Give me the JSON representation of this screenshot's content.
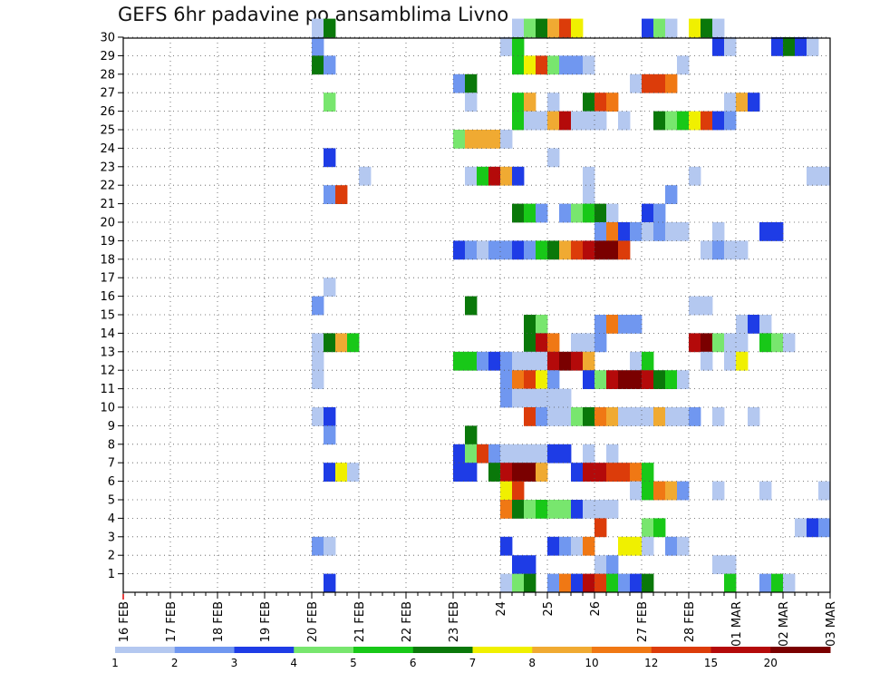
{
  "chart_data": {
    "type": "heatmap",
    "title": "GEFS 6hr padavine po ansamblima Livno",
    "xlabel": "",
    "ylabel": "",
    "x_tick_labels": [
      "16 FEB",
      "17 FEB",
      "18 FEB",
      "19 FEB",
      "20 FEB",
      "21 FEB",
      "22 FEB",
      "23 FEB",
      "24",
      "25",
      "26",
      "27 FEB",
      "28 FEB",
      "01 MAR",
      "02 MAR",
      "03 MAR"
    ],
    "y_tick_labels": [
      "1",
      "2",
      "3",
      "4",
      "5",
      "6",
      "7",
      "8",
      "9",
      "10",
      "11",
      "12",
      "13",
      "14",
      "15",
      "16",
      "17",
      "18",
      "19",
      "20",
      "21",
      "22",
      "23",
      "24",
      "25",
      "26",
      "27",
      "28",
      "29",
      "30"
    ],
    "x_step_days": 0.25,
    "grid": true,
    "colorbar": {
      "position": "bottom",
      "colors": [
        "#b4c8f0",
        "#7097f0",
        "#1e3ce6",
        "#78e66e",
        "#18c818",
        "#0a780a",
        "#f0f000",
        "#f0aa32",
        "#f07814",
        "#dc3c0a",
        "#b40a0a",
        "#7a0000"
      ],
      "labels": [
        "1",
        "2",
        "3",
        "4",
        "5",
        "6",
        "7",
        "8",
        "10",
        "12",
        "15",
        "20"
      ]
    },
    "cells": [
      [
        20.0,
        30,
        1
      ],
      [
        20.25,
        30,
        6
      ],
      [
        24.25,
        30,
        1
      ],
      [
        24.5,
        30,
        4
      ],
      [
        24.75,
        30,
        6
      ],
      [
        25.0,
        30,
        8
      ],
      [
        25.25,
        30,
        10
      ],
      [
        25.5,
        30,
        7
      ],
      [
        27.0,
        30,
        3
      ],
      [
        27.25,
        30,
        4
      ],
      [
        27.5,
        30,
        1
      ],
      [
        28.0,
        30,
        7
      ],
      [
        28.25,
        30,
        6
      ],
      [
        28.5,
        30,
        1
      ],
      [
        20.0,
        29,
        2
      ],
      [
        24.0,
        29,
        1
      ],
      [
        24.25,
        29,
        5
      ],
      [
        28.5,
        29,
        3
      ],
      [
        28.75,
        29,
        1
      ],
      [
        29.75,
        29,
        3
      ],
      [
        30.0,
        29,
        6
      ],
      [
        30.25,
        29,
        3
      ],
      [
        30.5,
        29,
        1
      ],
      [
        20.0,
        28,
        6
      ],
      [
        20.25,
        28,
        2
      ],
      [
        24.25,
        28,
        5
      ],
      [
        24.5,
        28,
        7
      ],
      [
        24.75,
        28,
        10
      ],
      [
        25.0,
        28,
        4
      ],
      [
        25.25,
        28,
        2
      ],
      [
        25.5,
        28,
        2
      ],
      [
        25.75,
        28,
        1
      ],
      [
        27.75,
        28,
        1
      ],
      [
        23.0,
        27,
        2
      ],
      [
        23.25,
        27,
        6
      ],
      [
        26.75,
        27,
        1
      ],
      [
        27.0,
        27,
        10
      ],
      [
        27.25,
        27,
        10
      ],
      [
        27.5,
        27,
        9
      ],
      [
        20.25,
        26,
        4
      ],
      [
        23.25,
        26,
        1
      ],
      [
        24.25,
        26,
        5
      ],
      [
        24.5,
        26,
        8
      ],
      [
        25.0,
        26,
        1
      ],
      [
        25.75,
        26,
        6
      ],
      [
        26.0,
        26,
        10
      ],
      [
        26.25,
        26,
        9
      ],
      [
        28.75,
        26,
        1
      ],
      [
        29.0,
        26,
        8
      ],
      [
        29.25,
        26,
        3
      ],
      [
        24.25,
        25,
        5
      ],
      [
        24.5,
        25,
        1
      ],
      [
        24.75,
        25,
        1
      ],
      [
        25.0,
        25,
        8
      ],
      [
        25.25,
        25,
        11
      ],
      [
        25.5,
        25,
        1
      ],
      [
        25.75,
        25,
        1
      ],
      [
        26.0,
        25,
        1
      ],
      [
        26.5,
        25,
        1
      ],
      [
        27.25,
        25,
        6
      ],
      [
        27.5,
        25,
        4
      ],
      [
        27.75,
        25,
        5
      ],
      [
        28.0,
        25,
        7
      ],
      [
        28.25,
        25,
        10
      ],
      [
        28.5,
        25,
        3
      ],
      [
        28.75,
        25,
        2
      ],
      [
        23.0,
        24,
        4
      ],
      [
        23.25,
        24,
        8
      ],
      [
        23.5,
        24,
        8
      ],
      [
        23.75,
        24,
        8
      ],
      [
        24.0,
        24,
        1
      ],
      [
        20.25,
        23,
        3
      ],
      [
        25.0,
        23,
        1
      ],
      [
        21.0,
        22,
        1
      ],
      [
        23.25,
        22,
        1
      ],
      [
        23.5,
        22,
        5
      ],
      [
        23.75,
        22,
        11
      ],
      [
        24.0,
        22,
        8
      ],
      [
        24.25,
        22,
        3
      ],
      [
        25.75,
        22,
        1
      ],
      [
        28.0,
        22,
        1
      ],
      [
        30.5,
        22,
        1
      ],
      [
        30.75,
        22,
        1
      ],
      [
        20.25,
        21,
        2
      ],
      [
        20.5,
        21,
        10
      ],
      [
        25.75,
        21,
        1
      ],
      [
        27.5,
        21,
        2
      ],
      [
        24.25,
        20,
        6
      ],
      [
        24.5,
        20,
        5
      ],
      [
        24.75,
        20,
        2
      ],
      [
        25.25,
        20,
        2
      ],
      [
        25.5,
        20,
        4
      ],
      [
        25.75,
        20,
        5
      ],
      [
        26.0,
        20,
        6
      ],
      [
        26.25,
        20,
        1
      ],
      [
        27.0,
        20,
        3
      ],
      [
        27.25,
        20,
        2
      ],
      [
        26.0,
        19,
        2
      ],
      [
        26.25,
        19,
        9
      ],
      [
        26.5,
        19,
        3
      ],
      [
        26.75,
        19,
        2
      ],
      [
        27.0,
        19,
        1
      ],
      [
        27.25,
        19,
        2
      ],
      [
        27.5,
        19,
        1
      ],
      [
        27.75,
        19,
        1
      ],
      [
        28.5,
        19,
        1
      ],
      [
        29.5,
        19,
        3
      ],
      [
        29.75,
        19,
        3
      ],
      [
        23.0,
        18,
        3
      ],
      [
        23.25,
        18,
        2
      ],
      [
        23.5,
        18,
        1
      ],
      [
        23.75,
        18,
        2
      ],
      [
        24.0,
        18,
        2
      ],
      [
        24.25,
        18,
        3
      ],
      [
        24.5,
        18,
        2
      ],
      [
        24.75,
        18,
        5
      ],
      [
        25.0,
        18,
        6
      ],
      [
        25.25,
        18,
        8
      ],
      [
        25.5,
        18,
        10
      ],
      [
        25.75,
        18,
        11
      ],
      [
        26.0,
        18,
        12
      ],
      [
        26.25,
        18,
        12
      ],
      [
        26.5,
        18,
        10
      ],
      [
        28.25,
        18,
        1
      ],
      [
        28.5,
        18,
        2
      ],
      [
        28.75,
        18,
        1
      ],
      [
        29.0,
        18,
        1
      ],
      [
        20.25,
        16,
        1
      ],
      [
        20.0,
        15,
        2
      ],
      [
        23.25,
        15,
        6
      ],
      [
        28.0,
        15,
        1
      ],
      [
        28.25,
        15,
        1
      ],
      [
        24.5,
        14,
        6
      ],
      [
        24.75,
        14,
        4
      ],
      [
        26.0,
        14,
        2
      ],
      [
        26.25,
        14,
        9
      ],
      [
        26.5,
        14,
        2
      ],
      [
        26.75,
        14,
        2
      ],
      [
        29.0,
        14,
        1
      ],
      [
        29.25,
        14,
        3
      ],
      [
        29.5,
        14,
        1
      ],
      [
        20.0,
        13,
        1
      ],
      [
        20.25,
        13,
        6
      ],
      [
        20.5,
        13,
        8
      ],
      [
        20.75,
        13,
        5
      ],
      [
        24.5,
        13,
        6
      ],
      [
        24.75,
        13,
        11
      ],
      [
        25.0,
        13,
        9
      ],
      [
        25.5,
        13,
        1
      ],
      [
        25.75,
        13,
        1
      ],
      [
        26.0,
        13,
        2
      ],
      [
        28.0,
        13,
        11
      ],
      [
        28.25,
        13,
        12
      ],
      [
        28.5,
        13,
        4
      ],
      [
        28.75,
        13,
        1
      ],
      [
        29.0,
        13,
        1
      ],
      [
        29.5,
        13,
        5
      ],
      [
        29.75,
        13,
        4
      ],
      [
        30.0,
        13,
        1
      ],
      [
        20.0,
        12,
        1
      ],
      [
        23.0,
        12,
        5
      ],
      [
        23.25,
        12,
        5
      ],
      [
        23.5,
        12,
        2
      ],
      [
        23.75,
        12,
        3
      ],
      [
        24.0,
        12,
        2
      ],
      [
        24.25,
        12,
        1
      ],
      [
        24.5,
        12,
        1
      ],
      [
        24.75,
        12,
        1
      ],
      [
        25.0,
        12,
        11
      ],
      [
        25.25,
        12,
        12
      ],
      [
        25.5,
        12,
        11
      ],
      [
        25.75,
        12,
        8
      ],
      [
        26.75,
        12,
        1
      ],
      [
        27.0,
        12,
        5
      ],
      [
        28.25,
        12,
        1
      ],
      [
        28.75,
        12,
        1
      ],
      [
        29.0,
        12,
        7
      ],
      [
        20.0,
        11,
        1
      ],
      [
        24.0,
        11,
        2
      ],
      [
        24.25,
        11,
        9
      ],
      [
        24.5,
        11,
        10
      ],
      [
        24.75,
        11,
        7
      ],
      [
        25.0,
        11,
        2
      ],
      [
        25.75,
        11,
        3
      ],
      [
        26.0,
        11,
        4
      ],
      [
        26.25,
        11,
        11
      ],
      [
        26.5,
        11,
        12
      ],
      [
        26.75,
        11,
        12
      ],
      [
        27.0,
        11,
        11
      ],
      [
        27.25,
        11,
        6
      ],
      [
        27.5,
        11,
        5
      ],
      [
        27.75,
        11,
        1
      ],
      [
        24.0,
        10,
        2
      ],
      [
        24.25,
        10,
        1
      ],
      [
        24.5,
        10,
        1
      ],
      [
        24.75,
        10,
        1
      ],
      [
        25.0,
        10,
        1
      ],
      [
        25.25,
        10,
        1
      ],
      [
        20.0,
        9,
        1
      ],
      [
        20.25,
        9,
        3
      ],
      [
        24.5,
        9,
        10
      ],
      [
        24.75,
        9,
        2
      ],
      [
        25.0,
        9,
        1
      ],
      [
        25.25,
        9,
        1
      ],
      [
        25.5,
        9,
        4
      ],
      [
        25.75,
        9,
        6
      ],
      [
        26.0,
        9,
        9
      ],
      [
        26.25,
        9,
        8
      ],
      [
        26.5,
        9,
        1
      ],
      [
        26.75,
        9,
        1
      ],
      [
        27.0,
        9,
        1
      ],
      [
        27.25,
        9,
        8
      ],
      [
        27.5,
        9,
        1
      ],
      [
        27.75,
        9,
        1
      ],
      [
        28.0,
        9,
        2
      ],
      [
        28.5,
        9,
        1
      ],
      [
        29.25,
        9,
        1
      ],
      [
        20.25,
        8,
        2
      ],
      [
        23.25,
        8,
        6
      ],
      [
        23.0,
        7,
        3
      ],
      [
        23.25,
        7,
        4
      ],
      [
        23.5,
        7,
        10
      ],
      [
        23.75,
        7,
        2
      ],
      [
        24.0,
        7,
        1
      ],
      [
        24.25,
        7,
        1
      ],
      [
        24.5,
        7,
        1
      ],
      [
        24.75,
        7,
        1
      ],
      [
        25.0,
        7,
        3
      ],
      [
        25.25,
        7,
        3
      ],
      [
        25.75,
        7,
        1
      ],
      [
        26.25,
        7,
        1
      ],
      [
        20.25,
        6,
        3
      ],
      [
        20.5,
        6,
        7
      ],
      [
        20.75,
        6,
        1
      ],
      [
        23.0,
        6,
        3
      ],
      [
        23.25,
        6,
        3
      ],
      [
        23.75,
        6,
        6
      ],
      [
        24.0,
        6,
        11
      ],
      [
        24.25,
        6,
        12
      ],
      [
        24.5,
        6,
        12
      ],
      [
        24.75,
        6,
        8
      ],
      [
        25.5,
        6,
        3
      ],
      [
        25.75,
        6,
        11
      ],
      [
        26.0,
        6,
        11
      ],
      [
        26.25,
        6,
        10
      ],
      [
        26.5,
        6,
        10
      ],
      [
        26.75,
        6,
        9
      ],
      [
        27.0,
        6,
        5
      ],
      [
        24.0,
        5,
        7
      ],
      [
        24.25,
        5,
        10
      ],
      [
        26.75,
        5,
        1
      ],
      [
        27.0,
        5,
        5
      ],
      [
        27.25,
        5,
        9
      ],
      [
        27.5,
        5,
        8
      ],
      [
        27.75,
        5,
        2
      ],
      [
        28.5,
        5,
        1
      ],
      [
        29.5,
        5,
        1
      ],
      [
        30.75,
        5,
        1
      ],
      [
        24.0,
        4,
        9
      ],
      [
        24.25,
        4,
        6
      ],
      [
        24.5,
        4,
        4
      ],
      [
        24.75,
        4,
        5
      ],
      [
        25.0,
        4,
        4
      ],
      [
        25.25,
        4,
        4
      ],
      [
        25.5,
        4,
        3
      ],
      [
        25.75,
        4,
        1
      ],
      [
        26.0,
        4,
        1
      ],
      [
        26.25,
        4,
        1
      ],
      [
        26.0,
        3,
        10
      ],
      [
        27.0,
        3,
        4
      ],
      [
        27.25,
        3,
        5
      ],
      [
        30.25,
        3,
        1
      ],
      [
        30.5,
        3,
        3
      ],
      [
        30.75,
        3,
        2
      ],
      [
        20.0,
        2,
        2
      ],
      [
        20.25,
        2,
        1
      ],
      [
        24.0,
        2,
        3
      ],
      [
        25.0,
        2,
        3
      ],
      [
        25.25,
        2,
        2
      ],
      [
        25.5,
        2,
        1
      ],
      [
        25.75,
        2,
        9
      ],
      [
        26.5,
        2,
        7
      ],
      [
        26.75,
        2,
        7
      ],
      [
        27.0,
        2,
        1
      ],
      [
        27.5,
        2,
        2
      ],
      [
        27.75,
        2,
        1
      ],
      [
        24.25,
        1,
        3
      ],
      [
        24.5,
        1,
        3
      ],
      [
        26.0,
        1,
        1
      ],
      [
        26.25,
        1,
        2
      ],
      [
        28.5,
        1,
        1
      ],
      [
        28.75,
        1,
        1
      ],
      [
        20.25,
        0,
        3
      ],
      [
        24.0,
        0,
        1
      ],
      [
        24.25,
        0,
        4
      ],
      [
        24.5,
        0,
        6
      ],
      [
        25.0,
        0,
        2
      ],
      [
        25.25,
        0,
        9
      ],
      [
        25.5,
        0,
        3
      ],
      [
        25.75,
        0,
        11
      ],
      [
        26.0,
        0,
        10
      ],
      [
        26.25,
        0,
        5
      ],
      [
        26.5,
        0,
        2
      ],
      [
        26.75,
        0,
        3
      ],
      [
        27.0,
        0,
        6
      ],
      [
        28.75,
        0,
        5
      ],
      [
        29.5,
        0,
        2
      ],
      [
        29.75,
        0,
        5
      ],
      [
        30.0,
        0,
        1
      ]
    ]
  }
}
